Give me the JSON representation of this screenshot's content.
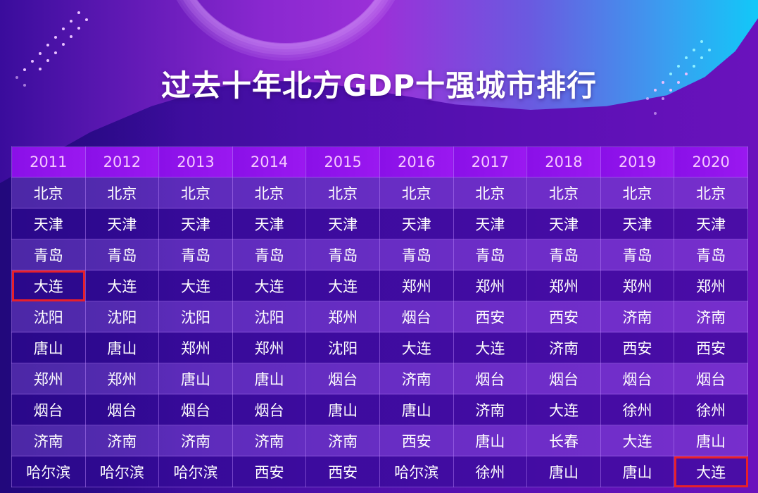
{
  "title": "过去十年北方GDP十强城市排行",
  "colors": {
    "header_bg": "#9014ec",
    "header_text": "#f5c8ff",
    "highlight_border": "#e8202a",
    "cell_text": "#ffffff"
  },
  "table": {
    "headers": [
      "2011",
      "2012",
      "2013",
      "2014",
      "2015",
      "2016",
      "2017",
      "2018",
      "2019",
      "2020"
    ],
    "rows": [
      [
        "北京",
        "北京",
        "北京",
        "北京",
        "北京",
        "北京",
        "北京",
        "北京",
        "北京",
        "北京"
      ],
      [
        "天津",
        "天津",
        "天津",
        "天津",
        "天津",
        "天津",
        "天津",
        "天津",
        "天津",
        "天津"
      ],
      [
        "青岛",
        "青岛",
        "青岛",
        "青岛",
        "青岛",
        "青岛",
        "青岛",
        "青岛",
        "青岛",
        "青岛"
      ],
      [
        "大连",
        "大连",
        "大连",
        "大连",
        "大连",
        "郑州",
        "郑州",
        "郑州",
        "郑州",
        "郑州"
      ],
      [
        "沈阳",
        "沈阳",
        "沈阳",
        "沈阳",
        "郑州",
        "烟台",
        "西安",
        "西安",
        "济南",
        "济南"
      ],
      [
        "唐山",
        "唐山",
        "郑州",
        "郑州",
        "沈阳",
        "大连",
        "大连",
        "济南",
        "西安",
        "西安"
      ],
      [
        "郑州",
        "郑州",
        "唐山",
        "唐山",
        "烟台",
        "济南",
        "烟台",
        "烟台",
        "烟台",
        "烟台"
      ],
      [
        "烟台",
        "烟台",
        "烟台",
        "烟台",
        "唐山",
        "唐山",
        "济南",
        "大连",
        "徐州",
        "徐州"
      ],
      [
        "济南",
        "济南",
        "济南",
        "济南",
        "济南",
        "西安",
        "唐山",
        "长春",
        "大连",
        "唐山"
      ],
      [
        "哈尔滨",
        "哈尔滨",
        "哈尔滨",
        "西安",
        "西安",
        "哈尔滨",
        "徐州",
        "唐山",
        "唐山",
        "大连"
      ]
    ],
    "highlighted_cells": [
      {
        "row": 3,
        "col": 0,
        "value": "大连"
      },
      {
        "row": 9,
        "col": 9,
        "value": "大连"
      }
    ]
  }
}
